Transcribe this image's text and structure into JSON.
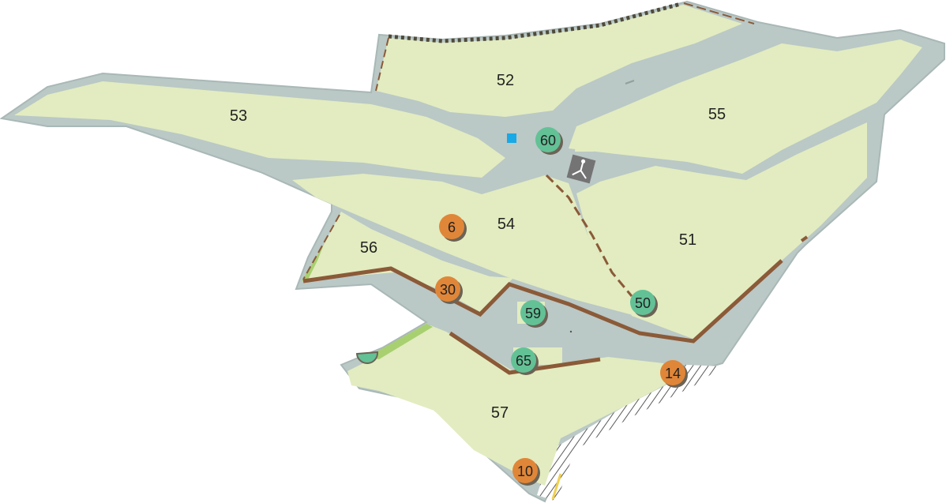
{
  "colors": {
    "land": "#e2ecc0",
    "road": "#bac8c6",
    "road_edge": "#a9b8b6",
    "boundary_brown": "#8b5a38",
    "boundary_dotted": "#4f4a3a",
    "trail": "#8b5a38",
    "marker_green": "#63c196",
    "marker_orange": "#e08638",
    "marker_shadow": "#6b6355",
    "monument_bg": "#747474",
    "water": "#19a9e6",
    "hatch": "#5a5a5a",
    "hedge": "#a8d070",
    "yellow_edge": "#f0d050"
  },
  "parcels": [
    "52",
    "53",
    "55",
    "54",
    "51",
    "56",
    "57"
  ],
  "markers": [
    {
      "label": "60",
      "kind": "green"
    },
    {
      "label": "6",
      "kind": "orange"
    },
    {
      "label": "30",
      "kind": "orange"
    },
    {
      "label": "59",
      "kind": "green"
    },
    {
      "label": "50",
      "kind": "green"
    },
    {
      "label": "65",
      "kind": "green"
    },
    {
      "label": "14",
      "kind": "orange"
    },
    {
      "label": "10",
      "kind": "orange"
    }
  ],
  "icons": {
    "monument": "monument-icon",
    "water_point": "water-point-icon"
  }
}
